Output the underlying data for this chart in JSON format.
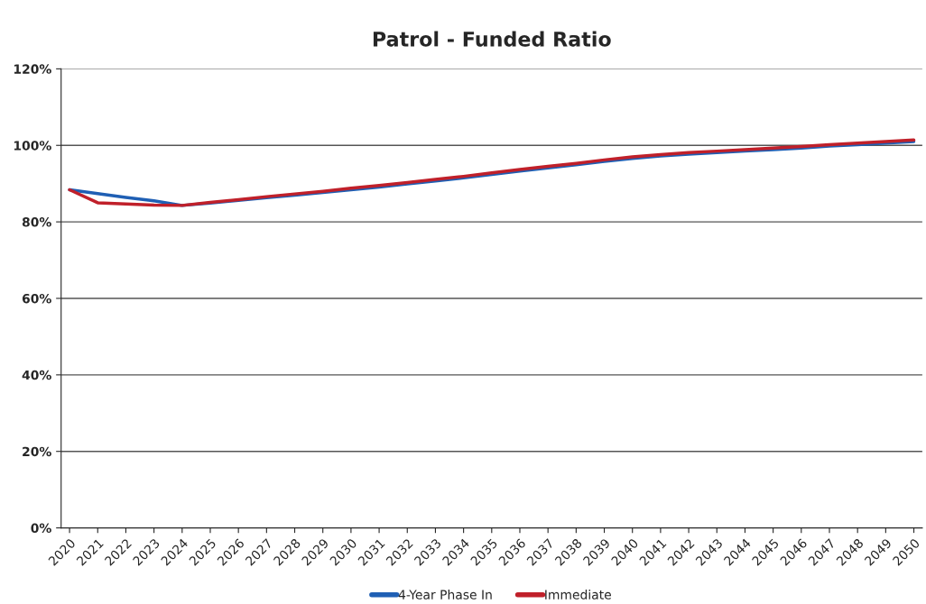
{
  "chart_data": {
    "type": "line",
    "title": "Patrol - Funded Ratio",
    "categories": [
      "2020",
      "2021",
      "2022",
      "2023",
      "2024",
      "2025",
      "2026",
      "2027",
      "2028",
      "2029",
      "2030",
      "2031",
      "2032",
      "2033",
      "2034",
      "2035",
      "2036",
      "2037",
      "2038",
      "2039",
      "2040",
      "2041",
      "2042",
      "2043",
      "2044",
      "2045",
      "2046",
      "2047",
      "2048",
      "2049",
      "2050"
    ],
    "series": [
      {
        "name": "4-Year Phase In",
        "color": "#1f5fb4",
        "values": [
          88.4,
          87.4,
          86.4,
          85.5,
          84.3,
          84.9,
          85.6,
          86.3,
          87.0,
          87.7,
          88.4,
          89.1,
          89.9,
          90.7,
          91.5,
          92.4,
          93.3,
          94.1,
          94.9,
          95.8,
          96.6,
          97.2,
          97.7,
          98.1,
          98.5,
          98.9,
          99.3,
          99.8,
          100.2,
          100.6,
          101.0
        ]
      },
      {
        "name": "Immediate",
        "color": "#c0202a",
        "values": [
          88.4,
          85.0,
          84.7,
          84.4,
          84.3,
          85.1,
          85.8,
          86.6,
          87.3,
          88.0,
          88.8,
          89.5,
          90.3,
          91.1,
          91.9,
          92.8,
          93.7,
          94.5,
          95.3,
          96.2,
          97.0,
          97.6,
          98.1,
          98.5,
          98.9,
          99.3,
          99.7,
          100.2,
          100.6,
          101.0,
          101.4
        ]
      }
    ],
    "ylim": [
      0,
      120
    ],
    "yticks": [
      {
        "value": 0,
        "label": "0%"
      },
      {
        "value": 20,
        "label": "20%"
      },
      {
        "value": 40,
        "label": "40%"
      },
      {
        "value": 60,
        "label": "60%"
      },
      {
        "value": 80,
        "label": "80%"
      },
      {
        "value": 100,
        "label": "100%"
      },
      {
        "value": 120,
        "label": "120%"
      }
    ],
    "grid": "y",
    "legend": "bottom",
    "marker": "none",
    "line_style": "solid"
  }
}
